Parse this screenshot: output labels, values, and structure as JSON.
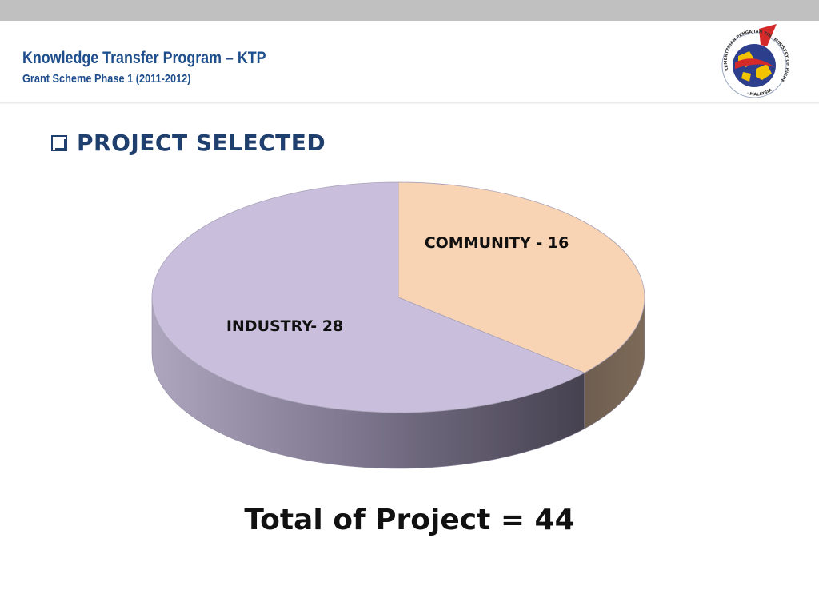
{
  "header": {
    "title": "Knowledge Transfer Program – KTP",
    "subtitle": "Grant Scheme Phase 1 (2011-2012)"
  },
  "logo": {
    "ring_text_top": "KEMENTERIAN PENGAJIAN TINGGI",
    "ring_text_right": "MINISTRY OF HIGHER EDUCATION",
    "ring_text_bottom": "· MALAYSIA ·"
  },
  "section": {
    "heading": "PROJECT SELECTED"
  },
  "chart_data": {
    "type": "pie",
    "style": "3d",
    "slices": [
      {
        "label": "COMMUNITY - 16",
        "category": "COMMUNITY",
        "value": 16,
        "color": "#f8d3b4"
      },
      {
        "label": "INDUSTRY- 28",
        "category": "INDUSTRY",
        "value": 28,
        "color": "#c9bfdc"
      }
    ],
    "total": 44
  },
  "footer": {
    "total_text": "Total of Project = 44"
  },
  "colors": {
    "title": "#1f4e8c",
    "heading": "#1f3f6e",
    "top_bar": "#c0c0c0"
  }
}
